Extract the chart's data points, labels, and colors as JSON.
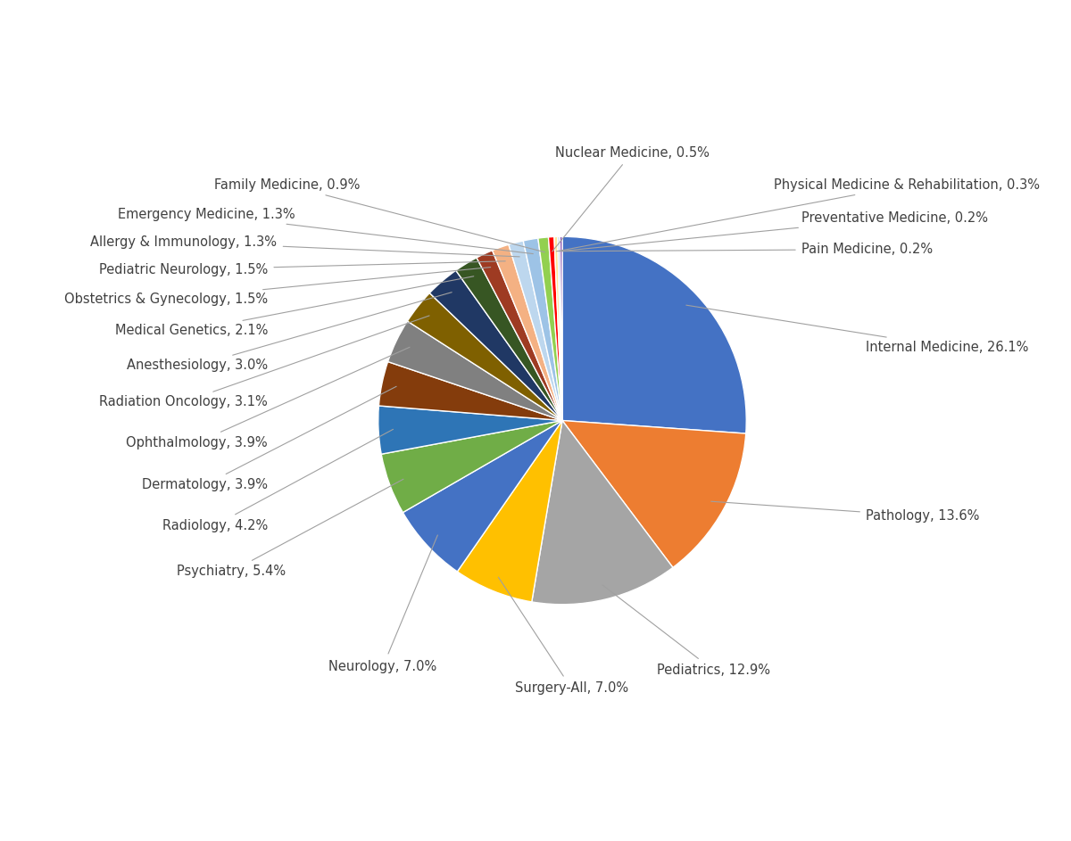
{
  "slices": [
    {
      "label": "Internal Medicine",
      "value": 26.1,
      "color": "#4472C4"
    },
    {
      "label": "Pathology",
      "value": 13.6,
      "color": "#ED7D31"
    },
    {
      "label": "Pediatrics",
      "value": 12.9,
      "color": "#A5A5A5"
    },
    {
      "label": "Surgery-All",
      "value": 7.0,
      "color": "#FFC000"
    },
    {
      "label": "Neurology",
      "value": 7.0,
      "color": "#4472C4"
    },
    {
      "label": "Psychiatry",
      "value": 5.4,
      "color": "#70AD47"
    },
    {
      "label": "Radiology",
      "value": 4.2,
      "color": "#2E75B6"
    },
    {
      "label": "Dermatology",
      "value": 3.9,
      "color": "#843C0C"
    },
    {
      "label": "Ophthalmology",
      "value": 3.9,
      "color": "#808080"
    },
    {
      "label": "Radiation Oncology",
      "value": 3.1,
      "color": "#7F6000"
    },
    {
      "label": "Anesthesiology",
      "value": 3.0,
      "color": "#203864"
    },
    {
      "label": "Medical Genetics",
      "value": 2.1,
      "color": "#375623"
    },
    {
      "label": "Obstetrics & Gynecology",
      "value": 1.5,
      "color": "#843C0C"
    },
    {
      "label": "Pediatric Neurology",
      "value": 1.5,
      "color": "#ED7D31"
    },
    {
      "label": "Allergy & Immunology",
      "value": 1.3,
      "color": "#BDD7EE"
    },
    {
      "label": "Emergency Medicine",
      "value": 1.3,
      "color": "#9DC3E6"
    },
    {
      "label": "Family Medicine",
      "value": 0.9,
      "color": "#70AD47"
    },
    {
      "label": "Nuclear Medicine",
      "value": 0.5,
      "color": "#FF0000"
    },
    {
      "label": "Physical Medicine & Rehabilitation",
      "value": 0.3,
      "color": "#FFE699"
    },
    {
      "label": "Preventative Medicine",
      "value": 0.2,
      "color": "#9DC3E6"
    },
    {
      "label": "Pain Medicine",
      "value": 0.2,
      "color": "#7030A0"
    }
  ],
  "background_color": "#FFFFFF",
  "figsize": [
    12.0,
    9.43
  ],
  "dpi": 100,
  "label_color": "#404040",
  "line_color": "#A0A0A0",
  "font_size": 10.5
}
